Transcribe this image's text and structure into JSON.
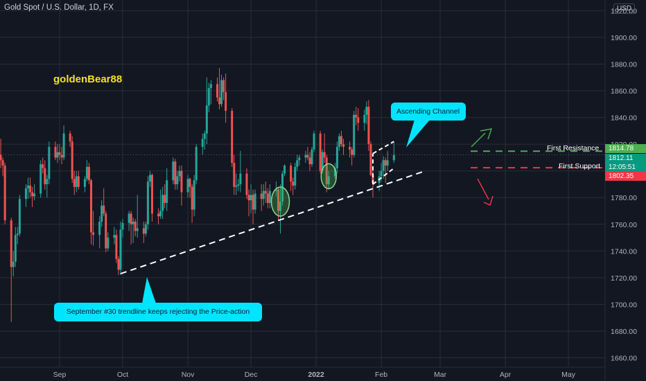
{
  "header": {
    "symbol_title": "Gold Spot / U.S. Dollar, 1D, FX",
    "currency": "USD"
  },
  "watermark_text": "goldenBear88",
  "annotations": {
    "channel": "Ascending Channel",
    "trendline": "September #30 trendline keeps rejecting the Price-action",
    "resistance_label": "First Resistance",
    "support_label": "First Support"
  },
  "price_tags": {
    "resistance": "1814.78",
    "current": "1812.11",
    "countdown": "12:05:51",
    "support": "1802.35"
  },
  "colors": {
    "background": "#131722",
    "grid": "#2a2e39",
    "up": "#26a69a",
    "down": "#ef5350",
    "callout": "#00e5ff",
    "brand_text": "#f2e12f",
    "resistance": "#4caf50",
    "support": "#f23645"
  },
  "chart_data": {
    "type": "candlestick",
    "title": "Gold Spot / U.S. Dollar, 1D, FX",
    "ylim": [
      1653,
      1928
    ],
    "y_ticks": [
      "1920.00",
      "1900.00",
      "1880.00",
      "1860.00",
      "1840.00",
      "1820.00",
      "1800.00",
      "1780.00",
      "1760.00",
      "1740.00",
      "1720.00",
      "1700.00",
      "1680.00",
      "1660.00"
    ],
    "x_ticks": [
      "Sep",
      "Oct",
      "Nov",
      "Dec",
      "2022",
      "Feb",
      "Mar",
      "Apr",
      "May"
    ],
    "x_tick_dates": [
      "2021-09-01",
      "2021-10-01",
      "2021-11-01",
      "2021-12-01",
      "2022-01-01",
      "2022-02-01",
      "2022-03-01",
      "2022-04-01",
      "2022-05-01"
    ],
    "ohlc": [
      {
        "date": "2021-08-02",
        "o": 1814,
        "h": 1833,
        "l": 1798,
        "c": 1810
      },
      {
        "date": "2021-08-03",
        "o": 1810,
        "h": 1818,
        "l": 1802,
        "c": 1812
      },
      {
        "date": "2021-08-04",
        "o": 1812,
        "h": 1824,
        "l": 1802,
        "c": 1808
      },
      {
        "date": "2021-08-05",
        "o": 1808,
        "h": 1810,
        "l": 1796,
        "c": 1804
      },
      {
        "date": "2021-08-06",
        "o": 1804,
        "h": 1806,
        "l": 1760,
        "c": 1763
      },
      {
        "date": "2021-08-09",
        "o": 1763,
        "h": 1765,
        "l": 1687,
        "c": 1728
      },
      {
        "date": "2021-08-10",
        "o": 1728,
        "h": 1740,
        "l": 1721,
        "c": 1732
      },
      {
        "date": "2021-08-11",
        "o": 1732,
        "h": 1758,
        "l": 1728,
        "c": 1752
      },
      {
        "date": "2021-08-12",
        "o": 1752,
        "h": 1758,
        "l": 1745,
        "c": 1753
      },
      {
        "date": "2021-08-13",
        "o": 1753,
        "h": 1782,
        "l": 1751,
        "c": 1779
      },
      {
        "date": "2021-08-16",
        "o": 1779,
        "h": 1790,
        "l": 1773,
        "c": 1787
      },
      {
        "date": "2021-08-17",
        "o": 1787,
        "h": 1795,
        "l": 1779,
        "c": 1789
      },
      {
        "date": "2021-08-18",
        "o": 1789,
        "h": 1795,
        "l": 1780,
        "c": 1784
      },
      {
        "date": "2021-08-19",
        "o": 1784,
        "h": 1788,
        "l": 1773,
        "c": 1781
      },
      {
        "date": "2021-08-20",
        "o": 1781,
        "h": 1790,
        "l": 1778,
        "c": 1783
      },
      {
        "date": "2021-08-23",
        "o": 1783,
        "h": 1808,
        "l": 1780,
        "c": 1805
      },
      {
        "date": "2021-08-24",
        "o": 1805,
        "h": 1810,
        "l": 1798,
        "c": 1802
      },
      {
        "date": "2021-08-25",
        "o": 1802,
        "h": 1808,
        "l": 1786,
        "c": 1790
      },
      {
        "date": "2021-08-26",
        "o": 1790,
        "h": 1797,
        "l": 1780,
        "c": 1794
      },
      {
        "date": "2021-08-27",
        "o": 1794,
        "h": 1822,
        "l": 1790,
        "c": 1818
      },
      {
        "date": "2021-08-30",
        "o": 1818,
        "h": 1822,
        "l": 1808,
        "c": 1810
      },
      {
        "date": "2021-08-31",
        "o": 1810,
        "h": 1820,
        "l": 1806,
        "c": 1814
      },
      {
        "date": "2021-09-01",
        "o": 1814,
        "h": 1820,
        "l": 1808,
        "c": 1812
      },
      {
        "date": "2021-09-02",
        "o": 1812,
        "h": 1818,
        "l": 1805,
        "c": 1810
      },
      {
        "date": "2021-09-03",
        "o": 1810,
        "h": 1834,
        "l": 1808,
        "c": 1828
      },
      {
        "date": "2021-09-06",
        "o": 1828,
        "h": 1830,
        "l": 1818,
        "c": 1822
      },
      {
        "date": "2021-09-07",
        "o": 1822,
        "h": 1826,
        "l": 1791,
        "c": 1794
      },
      {
        "date": "2021-09-08",
        "o": 1794,
        "h": 1800,
        "l": 1782,
        "c": 1788
      },
      {
        "date": "2021-09-09",
        "o": 1788,
        "h": 1800,
        "l": 1784,
        "c": 1796
      },
      {
        "date": "2021-09-10",
        "o": 1796,
        "h": 1800,
        "l": 1786,
        "c": 1788
      },
      {
        "date": "2021-09-13",
        "o": 1788,
        "h": 1796,
        "l": 1784,
        "c": 1794
      },
      {
        "date": "2021-09-14",
        "o": 1794,
        "h": 1808,
        "l": 1792,
        "c": 1803
      },
      {
        "date": "2021-09-15",
        "o": 1803,
        "h": 1806,
        "l": 1790,
        "c": 1793
      },
      {
        "date": "2021-09-16",
        "o": 1793,
        "h": 1794,
        "l": 1745,
        "c": 1754
      },
      {
        "date": "2021-09-17",
        "o": 1754,
        "h": 1770,
        "l": 1744,
        "c": 1752
      },
      {
        "date": "2021-09-20",
        "o": 1752,
        "h": 1766,
        "l": 1742,
        "c": 1762
      },
      {
        "date": "2021-09-21",
        "o": 1762,
        "h": 1778,
        "l": 1758,
        "c": 1774
      },
      {
        "date": "2021-09-22",
        "o": 1774,
        "h": 1787,
        "l": 1766,
        "c": 1768
      },
      {
        "date": "2021-09-23",
        "o": 1768,
        "h": 1770,
        "l": 1739,
        "c": 1742
      },
      {
        "date": "2021-09-24",
        "o": 1742,
        "h": 1754,
        "l": 1740,
        "c": 1750
      },
      {
        "date": "2021-09-27",
        "o": 1750,
        "h": 1758,
        "l": 1745,
        "c": 1752
      },
      {
        "date": "2021-09-28",
        "o": 1752,
        "h": 1756,
        "l": 1731,
        "c": 1734
      },
      {
        "date": "2021-09-29",
        "o": 1734,
        "h": 1736,
        "l": 1722,
        "c": 1726
      },
      {
        "date": "2021-09-30",
        "o": 1726,
        "h": 1762,
        "l": 1722,
        "c": 1756
      },
      {
        "date": "2021-10-01",
        "o": 1756,
        "h": 1764,
        "l": 1750,
        "c": 1761
      },
      {
        "date": "2021-10-04",
        "o": 1761,
        "h": 1770,
        "l": 1755,
        "c": 1768
      },
      {
        "date": "2021-10-05",
        "o": 1768,
        "h": 1770,
        "l": 1745,
        "c": 1760
      },
      {
        "date": "2021-10-06",
        "o": 1760,
        "h": 1765,
        "l": 1746,
        "c": 1762
      },
      {
        "date": "2021-10-07",
        "o": 1762,
        "h": 1764,
        "l": 1751,
        "c": 1755
      },
      {
        "date": "2021-10-08",
        "o": 1755,
        "h": 1782,
        "l": 1750,
        "c": 1757
      },
      {
        "date": "2021-10-11",
        "o": 1757,
        "h": 1762,
        "l": 1746,
        "c": 1753
      },
      {
        "date": "2021-10-12",
        "o": 1753,
        "h": 1762,
        "l": 1751,
        "c": 1760
      },
      {
        "date": "2021-10-13",
        "o": 1760,
        "h": 1796,
        "l": 1756,
        "c": 1792
      },
      {
        "date": "2021-10-14",
        "o": 1792,
        "h": 1800,
        "l": 1788,
        "c": 1797
      },
      {
        "date": "2021-10-15",
        "o": 1797,
        "h": 1798,
        "l": 1762,
        "c": 1768
      },
      {
        "date": "2021-10-18",
        "o": 1768,
        "h": 1772,
        "l": 1760,
        "c": 1766
      },
      {
        "date": "2021-10-19",
        "o": 1766,
        "h": 1786,
        "l": 1764,
        "c": 1770
      },
      {
        "date": "2021-10-20",
        "o": 1770,
        "h": 1788,
        "l": 1764,
        "c": 1782
      },
      {
        "date": "2021-10-21",
        "o": 1782,
        "h": 1790,
        "l": 1772,
        "c": 1776
      },
      {
        "date": "2021-10-22",
        "o": 1776,
        "h": 1802,
        "l": 1770,
        "c": 1793
      },
      {
        "date": "2021-10-25",
        "o": 1793,
        "h": 1810,
        "l": 1790,
        "c": 1807
      },
      {
        "date": "2021-10-26",
        "o": 1807,
        "h": 1809,
        "l": 1786,
        "c": 1790
      },
      {
        "date": "2021-10-27",
        "o": 1790,
        "h": 1800,
        "l": 1786,
        "c": 1796
      },
      {
        "date": "2021-10-28",
        "o": 1796,
        "h": 1804,
        "l": 1792,
        "c": 1800
      },
      {
        "date": "2021-10-29",
        "o": 1800,
        "h": 1804,
        "l": 1774,
        "c": 1784
      },
      {
        "date": "2021-11-01",
        "o": 1784,
        "h": 1797,
        "l": 1780,
        "c": 1794
      },
      {
        "date": "2021-11-02",
        "o": 1794,
        "h": 1795,
        "l": 1780,
        "c": 1788
      },
      {
        "date": "2021-11-03",
        "o": 1788,
        "h": 1790,
        "l": 1761,
        "c": 1771
      },
      {
        "date": "2021-11-04",
        "o": 1771,
        "h": 1797,
        "l": 1766,
        "c": 1793
      },
      {
        "date": "2021-11-05",
        "o": 1793,
        "h": 1820,
        "l": 1790,
        "c": 1818
      },
      {
        "date": "2021-11-08",
        "o": 1818,
        "h": 1828,
        "l": 1812,
        "c": 1824
      },
      {
        "date": "2021-11-09",
        "o": 1824,
        "h": 1830,
        "l": 1816,
        "c": 1828
      },
      {
        "date": "2021-11-10",
        "o": 1828,
        "h": 1870,
        "l": 1820,
        "c": 1849
      },
      {
        "date": "2021-11-11",
        "o": 1849,
        "h": 1866,
        "l": 1844,
        "c": 1862
      },
      {
        "date": "2021-11-12",
        "o": 1862,
        "h": 1868,
        "l": 1850,
        "c": 1865
      },
      {
        "date": "2021-11-15",
        "o": 1865,
        "h": 1870,
        "l": 1852,
        "c": 1855
      },
      {
        "date": "2021-11-16",
        "o": 1855,
        "h": 1877,
        "l": 1846,
        "c": 1850
      },
      {
        "date": "2021-11-17",
        "o": 1850,
        "h": 1872,
        "l": 1848,
        "c": 1868
      },
      {
        "date": "2021-11-18",
        "o": 1868,
        "h": 1870,
        "l": 1853,
        "c": 1859
      },
      {
        "date": "2021-11-19",
        "o": 1859,
        "h": 1873,
        "l": 1836,
        "c": 1845
      },
      {
        "date": "2021-11-22",
        "o": 1845,
        "h": 1847,
        "l": 1803,
        "c": 1806
      },
      {
        "date": "2021-11-23",
        "o": 1806,
        "h": 1812,
        "l": 1782,
        "c": 1788
      },
      {
        "date": "2021-11-24",
        "o": 1788,
        "h": 1798,
        "l": 1782,
        "c": 1789
      },
      {
        "date": "2021-11-25",
        "o": 1789,
        "h": 1794,
        "l": 1785,
        "c": 1790
      },
      {
        "date": "2021-11-26",
        "o": 1790,
        "h": 1815,
        "l": 1784,
        "c": 1798
      },
      {
        "date": "2021-11-29",
        "o": 1798,
        "h": 1802,
        "l": 1779,
        "c": 1782
      },
      {
        "date": "2021-11-30",
        "o": 1782,
        "h": 1786,
        "l": 1766,
        "c": 1778
      },
      {
        "date": "2021-12-01",
        "o": 1778,
        "h": 1790,
        "l": 1768,
        "c": 1782
      },
      {
        "date": "2021-12-02",
        "o": 1782,
        "h": 1786,
        "l": 1760,
        "c": 1771
      },
      {
        "date": "2021-12-03",
        "o": 1771,
        "h": 1786,
        "l": 1768,
        "c": 1783
      },
      {
        "date": "2021-12-06",
        "o": 1783,
        "h": 1790,
        "l": 1770,
        "c": 1779
      },
      {
        "date": "2021-12-07",
        "o": 1779,
        "h": 1790,
        "l": 1774,
        "c": 1785
      },
      {
        "date": "2021-12-08",
        "o": 1785,
        "h": 1792,
        "l": 1776,
        "c": 1783
      },
      {
        "date": "2021-12-09",
        "o": 1783,
        "h": 1787,
        "l": 1772,
        "c": 1776
      },
      {
        "date": "2021-12-10",
        "o": 1776,
        "h": 1790,
        "l": 1772,
        "c": 1785
      },
      {
        "date": "2021-12-13",
        "o": 1785,
        "h": 1792,
        "l": 1781,
        "c": 1786
      },
      {
        "date": "2021-12-14",
        "o": 1786,
        "h": 1788,
        "l": 1763,
        "c": 1770
      },
      {
        "date": "2021-12-15",
        "o": 1770,
        "h": 1790,
        "l": 1753,
        "c": 1777
      },
      {
        "date": "2021-12-16",
        "o": 1777,
        "h": 1800,
        "l": 1774,
        "c": 1798
      },
      {
        "date": "2021-12-17",
        "o": 1798,
        "h": 1805,
        "l": 1796,
        "c": 1804
      },
      {
        "date": "2021-12-20",
        "o": 1804,
        "h": 1806,
        "l": 1785,
        "c": 1792
      },
      {
        "date": "2021-12-21",
        "o": 1792,
        "h": 1795,
        "l": 1782,
        "c": 1789
      },
      {
        "date": "2021-12-22",
        "o": 1789,
        "h": 1806,
        "l": 1786,
        "c": 1803
      },
      {
        "date": "2021-12-23",
        "o": 1803,
        "h": 1812,
        "l": 1800,
        "c": 1808
      },
      {
        "date": "2021-12-24",
        "o": 1808,
        "h": 1812,
        "l": 1804,
        "c": 1810
      },
      {
        "date": "2021-12-27",
        "o": 1810,
        "h": 1815,
        "l": 1806,
        "c": 1812
      },
      {
        "date": "2021-12-28",
        "o": 1812,
        "h": 1818,
        "l": 1808,
        "c": 1810
      },
      {
        "date": "2021-12-29",
        "o": 1810,
        "h": 1814,
        "l": 1800,
        "c": 1805
      },
      {
        "date": "2021-12-30",
        "o": 1805,
        "h": 1818,
        "l": 1803,
        "c": 1816
      },
      {
        "date": "2021-12-31",
        "o": 1816,
        "h": 1830,
        "l": 1814,
        "c": 1828
      },
      {
        "date": "2022-01-03",
        "o": 1828,
        "h": 1830,
        "l": 1798,
        "c": 1800
      },
      {
        "date": "2022-01-04",
        "o": 1800,
        "h": 1816,
        "l": 1798,
        "c": 1814
      },
      {
        "date": "2022-01-05",
        "o": 1814,
        "h": 1828,
        "l": 1806,
        "c": 1810
      },
      {
        "date": "2022-01-06",
        "o": 1810,
        "h": 1812,
        "l": 1784,
        "c": 1790
      },
      {
        "date": "2022-01-07",
        "o": 1790,
        "h": 1800,
        "l": 1786,
        "c": 1796
      },
      {
        "date": "2022-01-10",
        "o": 1796,
        "h": 1806,
        "l": 1794,
        "c": 1802
      },
      {
        "date": "2022-01-11",
        "o": 1802,
        "h": 1822,
        "l": 1798,
        "c": 1818
      },
      {
        "date": "2022-01-12",
        "o": 1818,
        "h": 1828,
        "l": 1815,
        "c": 1826
      },
      {
        "date": "2022-01-13",
        "o": 1826,
        "h": 1830,
        "l": 1818,
        "c": 1820
      },
      {
        "date": "2022-01-14",
        "o": 1820,
        "h": 1824,
        "l": 1812,
        "c": 1818
      },
      {
        "date": "2022-01-17",
        "o": 1818,
        "h": 1822,
        "l": 1810,
        "c": 1816
      },
      {
        "date": "2022-01-18",
        "o": 1816,
        "h": 1818,
        "l": 1804,
        "c": 1812
      },
      {
        "date": "2022-01-19",
        "o": 1812,
        "h": 1845,
        "l": 1810,
        "c": 1842
      },
      {
        "date": "2022-01-20",
        "o": 1842,
        "h": 1848,
        "l": 1834,
        "c": 1840
      },
      {
        "date": "2022-01-21",
        "o": 1840,
        "h": 1847,
        "l": 1830,
        "c": 1836
      },
      {
        "date": "2022-01-24",
        "o": 1836,
        "h": 1846,
        "l": 1830,
        "c": 1842
      },
      {
        "date": "2022-01-25",
        "o": 1842,
        "h": 1852,
        "l": 1835,
        "c": 1848
      },
      {
        "date": "2022-01-26",
        "o": 1848,
        "h": 1853,
        "l": 1815,
        "c": 1820
      },
      {
        "date": "2022-01-27",
        "o": 1820,
        "h": 1822,
        "l": 1796,
        "c": 1797
      },
      {
        "date": "2022-01-28",
        "o": 1797,
        "h": 1801,
        "l": 1780,
        "c": 1791
      },
      {
        "date": "2022-01-31",
        "o": 1791,
        "h": 1800,
        "l": 1785,
        "c": 1796
      },
      {
        "date": "2022-02-01",
        "o": 1796,
        "h": 1806,
        "l": 1792,
        "c": 1800
      },
      {
        "date": "2022-02-02",
        "o": 1800,
        "h": 1811,
        "l": 1794,
        "c": 1808
      },
      {
        "date": "2022-02-03",
        "o": 1808,
        "h": 1810,
        "l": 1791,
        "c": 1804
      },
      {
        "date": "2022-02-04",
        "o": 1804,
        "h": 1815,
        "l": 1800,
        "c": 1808
      },
      {
        "date": "2022-02-07",
        "o": 1808,
        "h": 1822,
        "l": 1806,
        "c": 1812
      }
    ],
    "levels": [
      {
        "name": "First Resistance",
        "value": 1814.78
      },
      {
        "name": "First Support",
        "value": 1802.35
      }
    ],
    "last_price": 1812.11,
    "drawings": {
      "trendline": [
        {
          "date": "2021-09-30",
          "price": 1723
        },
        {
          "date": "2022-02-22",
          "price": 1800
        }
      ],
      "channel_lower": [
        {
          "date": "2022-01-28",
          "price": 1790
        },
        {
          "date": "2022-02-07",
          "price": 1802
        }
      ],
      "channel_upper": [
        {
          "date": "2022-01-28",
          "price": 1813
        },
        {
          "date": "2022-02-07",
          "price": 1822
        }
      ]
    }
  }
}
